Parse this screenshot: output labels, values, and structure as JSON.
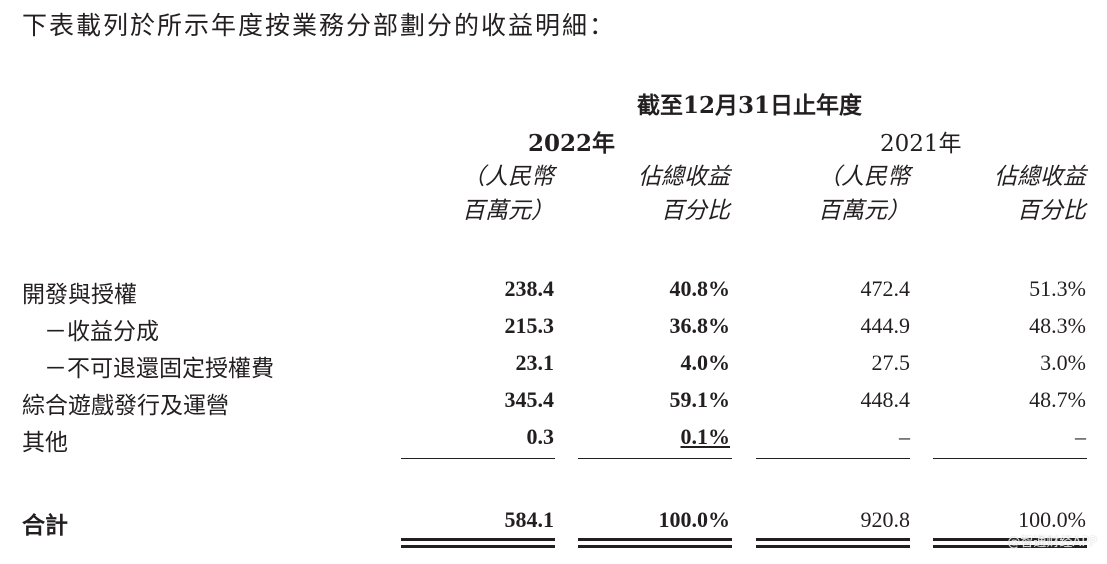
{
  "intro": "下表載列於所示年度按業務分部劃分的收益明細：",
  "header": {
    "period": "截至12月31日止年度",
    "year_2022": "2022年",
    "year_2021": "2021年",
    "col_rmb_line1": "（人民幣",
    "col_rmb_line2": "百萬元）",
    "col_pct_line1": "佔總收益",
    "col_pct_line2": "百分比"
  },
  "rows": [
    {
      "label": "開發與授權",
      "v2022": "238.4",
      "p2022": "40.8%",
      "v2021": "472.4",
      "p2021": "51.3%"
    },
    {
      "label": "－收益分成",
      "v2022": "215.3",
      "p2022": "36.8%",
      "v2021": "444.9",
      "p2021": "48.3%"
    },
    {
      "label": "－不可退還固定授權費",
      "v2022": "23.1",
      "p2022": "4.0%",
      "v2021": "27.5",
      "p2021": "3.0%"
    },
    {
      "label": "綜合遊戲發行及運營",
      "v2022": "345.4",
      "p2022": "59.1%",
      "v2021": "448.4",
      "p2021": "48.7%"
    },
    {
      "label": "其他",
      "v2022": "0.3",
      "p2022": "0.1%",
      "v2021": "–",
      "p2021": "–"
    }
  ],
  "total": {
    "label": "合計",
    "v2022": "584.1",
    "p2022": "100.0%",
    "v2021": "920.8",
    "p2021": "100.0%"
  },
  "watermark": "@智通财经APP"
}
